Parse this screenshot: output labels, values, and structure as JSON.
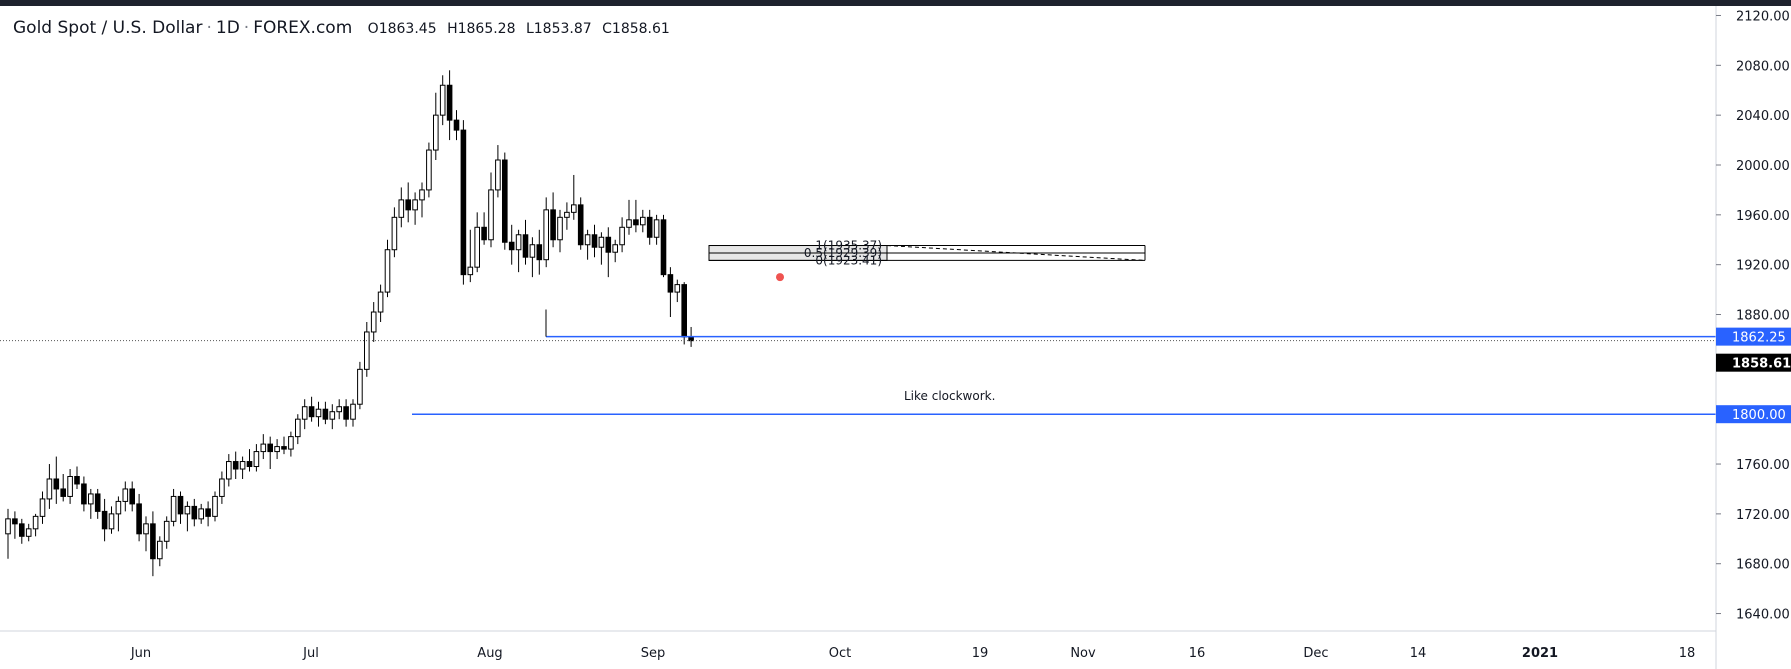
{
  "legend": {
    "symbol": "Gold Spot / U.S. Dollar",
    "interval": "1D",
    "source": "FOREX.com",
    "open_key": "O",
    "open": "1863.45",
    "high_key": "H",
    "high": "1865.28",
    "low_key": "L",
    "low": "1853.87",
    "close_key": "C",
    "close": "1858.61"
  },
  "annotation_text": "Like clockwork.",
  "fib_labels": [
    "1(1935.37)",
    "0.5(1929.39)",
    "0(1923.41)"
  ],
  "price_tags": {
    "level_upper": "1862.25",
    "current": "1858.61",
    "level_lower": "1800.00"
  },
  "colors": {
    "candle_up_fill": "#ffffff",
    "candle_down_fill": "#000000",
    "level_line": "#2962ff",
    "current_tag_bg": "#000000",
    "red_dot": "#ef5350"
  },
  "chart_data": {
    "type": "candlestick",
    "y_ticks": [
      "2120.00",
      "2080.00",
      "2040.00",
      "2000.00",
      "1960.00",
      "1920.00",
      "1880.00",
      "1840.00",
      "1800.00",
      "1760.00",
      "1720.00",
      "1680.00",
      "1640.00"
    ],
    "ylim": [
      1626,
      2126
    ],
    "x_ticks": [
      "Jun",
      "Jul",
      "Aug",
      "Sep",
      "Oct",
      "19",
      "Nov",
      "16",
      "Dec",
      "14",
      "2021",
      "18"
    ],
    "horizontal_levels": [
      1862.25,
      1800.0
    ],
    "fib_levels": [
      1935.37,
      1929.39,
      1923.41
    ],
    "ohlc": [
      [
        1704,
        1724,
        1684,
        1716
      ],
      [
        1716,
        1722,
        1700,
        1712
      ],
      [
        1712,
        1716,
        1696,
        1702
      ],
      [
        1702,
        1712,
        1698,
        1708
      ],
      [
        1708,
        1720,
        1702,
        1718
      ],
      [
        1718,
        1738,
        1712,
        1732
      ],
      [
        1732,
        1760,
        1724,
        1748
      ],
      [
        1748,
        1766,
        1728,
        1740
      ],
      [
        1740,
        1752,
        1730,
        1734
      ],
      [
        1734,
        1756,
        1728,
        1750
      ],
      [
        1750,
        1758,
        1740,
        1744
      ],
      [
        1744,
        1750,
        1722,
        1728
      ],
      [
        1728,
        1740,
        1716,
        1736
      ],
      [
        1736,
        1740,
        1716,
        1722
      ],
      [
        1722,
        1732,
        1698,
        1708
      ],
      [
        1708,
        1726,
        1704,
        1720
      ],
      [
        1720,
        1734,
        1706,
        1730
      ],
      [
        1730,
        1746,
        1722,
        1740
      ],
      [
        1740,
        1746,
        1722,
        1728
      ],
      [
        1728,
        1736,
        1698,
        1704
      ],
      [
        1704,
        1718,
        1690,
        1712
      ],
      [
        1712,
        1722,
        1670,
        1684
      ],
      [
        1684,
        1702,
        1678,
        1698
      ],
      [
        1698,
        1718,
        1692,
        1714
      ],
      [
        1714,
        1740,
        1710,
        1734
      ],
      [
        1734,
        1738,
        1712,
        1720
      ],
      [
        1720,
        1730,
        1706,
        1726
      ],
      [
        1726,
        1732,
        1710,
        1716
      ],
      [
        1716,
        1728,
        1712,
        1724
      ],
      [
        1724,
        1730,
        1710,
        1718
      ],
      [
        1718,
        1738,
        1714,
        1734
      ],
      [
        1734,
        1754,
        1728,
        1748
      ],
      [
        1748,
        1768,
        1742,
        1762
      ],
      [
        1762,
        1770,
        1748,
        1756
      ],
      [
        1756,
        1766,
        1748,
        1762
      ],
      [
        1762,
        1772,
        1754,
        1758
      ],
      [
        1758,
        1776,
        1754,
        1770
      ],
      [
        1770,
        1784,
        1764,
        1776
      ],
      [
        1776,
        1782,
        1756,
        1770
      ],
      [
        1770,
        1780,
        1764,
        1774
      ],
      [
        1774,
        1782,
        1768,
        1772
      ],
      [
        1772,
        1786,
        1766,
        1782
      ],
      [
        1782,
        1800,
        1776,
        1796
      ],
      [
        1796,
        1812,
        1788,
        1806
      ],
      [
        1806,
        1814,
        1794,
        1798
      ],
      [
        1798,
        1810,
        1790,
        1804
      ],
      [
        1804,
        1810,
        1792,
        1796
      ],
      [
        1796,
        1808,
        1788,
        1802
      ],
      [
        1802,
        1812,
        1796,
        1806
      ],
      [
        1806,
        1812,
        1790,
        1796
      ],
      [
        1796,
        1812,
        1790,
        1808
      ],
      [
        1808,
        1842,
        1804,
        1836
      ],
      [
        1836,
        1874,
        1830,
        1866
      ],
      [
        1866,
        1890,
        1858,
        1882
      ],
      [
        1882,
        1904,
        1874,
        1898
      ],
      [
        1898,
        1940,
        1894,
        1932
      ],
      [
        1932,
        1966,
        1926,
        1958
      ],
      [
        1958,
        1982,
        1950,
        1972
      ],
      [
        1972,
        1986,
        1954,
        1964
      ],
      [
        1964,
        1978,
        1952,
        1972
      ],
      [
        1972,
        1986,
        1958,
        1980
      ],
      [
        1980,
        2018,
        1974,
        2012
      ],
      [
        2012,
        2058,
        2004,
        2040
      ],
      [
        2040,
        2072,
        2032,
        2064
      ],
      [
        2064,
        2076,
        2020,
        2036
      ],
      [
        2036,
        2044,
        2020,
        2028
      ],
      [
        2028,
        2036,
        1904,
        1912
      ],
      [
        1912,
        1948,
        1906,
        1918
      ],
      [
        1918,
        1962,
        1914,
        1950
      ],
      [
        1950,
        1962,
        1936,
        1940
      ],
      [
        1940,
        1994,
        1934,
        1980
      ],
      [
        1980,
        2016,
        1974,
        2004
      ],
      [
        2004,
        2010,
        1932,
        1938
      ],
      [
        1938,
        1952,
        1920,
        1932
      ],
      [
        1932,
        1948,
        1914,
        1944
      ],
      [
        1944,
        1956,
        1920,
        1926
      ],
      [
        1926,
        1942,
        1910,
        1936
      ],
      [
        1936,
        1948,
        1912,
        1924
      ],
      [
        1924,
        1974,
        1918,
        1964
      ],
      [
        1964,
        1978,
        1934,
        1940
      ],
      [
        1940,
        1964,
        1930,
        1958
      ],
      [
        1958,
        1970,
        1948,
        1962
      ],
      [
        1962,
        1992,
        1956,
        1968
      ],
      [
        1968,
        1974,
        1932,
        1936
      ],
      [
        1936,
        1948,
        1924,
        1944
      ],
      [
        1944,
        1952,
        1926,
        1934
      ],
      [
        1934,
        1946,
        1920,
        1942
      ],
      [
        1942,
        1950,
        1910,
        1930
      ],
      [
        1930,
        1940,
        1922,
        1936
      ],
      [
        1936,
        1958,
        1930,
        1950
      ],
      [
        1950,
        1972,
        1944,
        1956
      ],
      [
        1956,
        1972,
        1946,
        1952
      ],
      [
        1952,
        1964,
        1946,
        1958
      ],
      [
        1958,
        1964,
        1936,
        1942
      ],
      [
        1942,
        1960,
        1936,
        1956
      ],
      [
        1956,
        1960,
        1910,
        1912
      ],
      [
        1912,
        1918,
        1878,
        1898
      ],
      [
        1898,
        1908,
        1890,
        1904
      ],
      [
        1904,
        1906,
        1856,
        1862
      ],
      [
        1862,
        1870,
        1854,
        1859
      ]
    ]
  }
}
